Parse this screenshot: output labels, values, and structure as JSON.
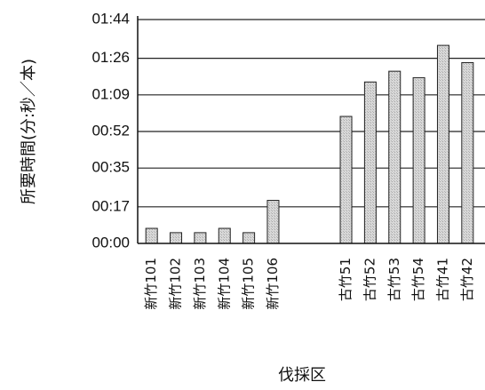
{
  "chart_data": {
    "type": "bar",
    "xlabel": "伐採区",
    "ylabel": "所要時間(分:秒／本)",
    "y_unit": "mm:ss",
    "yticks": [
      "00:00",
      "00:17",
      "00:35",
      "00:52",
      "01:09",
      "01:26",
      "01:44"
    ],
    "ylim_seconds": [
      0,
      104
    ],
    "grid": "horizontal",
    "categories": [
      "新竹101",
      "新竹102",
      "新竹103",
      "新竹104",
      "新竹105",
      "新竹106",
      "古竹51",
      "古竹52",
      "古竹53",
      "古竹54",
      "古竹41",
      "古竹42"
    ],
    "values_seconds": [
      7,
      5,
      5,
      7,
      5,
      20,
      59,
      75,
      80,
      77,
      92,
      84
    ],
    "group_gap_after_index": 5,
    "bar_color": "#d8d8d8"
  }
}
